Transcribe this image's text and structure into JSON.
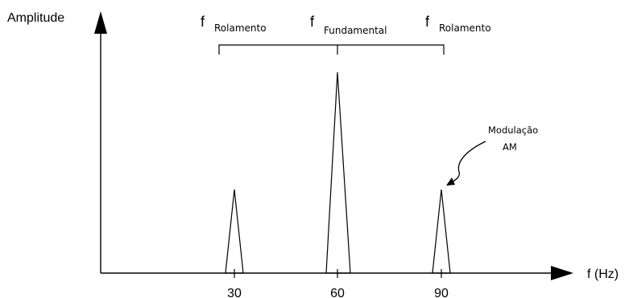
{
  "figure": {
    "y_axis_label": "Amplitude",
    "x_axis_label": "f (Hz)",
    "peaks": [
      {
        "freq": 30,
        "tick_label": "30",
        "relative_amplitude": 0.4,
        "bracket_symbol": "f",
        "bracket_subscript": "Rolamento"
      },
      {
        "freq": 60,
        "tick_label": "60",
        "relative_amplitude": 1.0,
        "bracket_symbol": "f",
        "bracket_subscript": "Fundamental"
      },
      {
        "freq": 90,
        "tick_label": "90",
        "relative_amplitude": 0.4,
        "bracket_symbol": "f",
        "bracket_subscript": "Rolamento"
      }
    ],
    "annotation": {
      "line1": "Modulação",
      "line2": "AM"
    },
    "colors": {
      "ink": "#000000",
      "background": "#ffffff"
    }
  }
}
